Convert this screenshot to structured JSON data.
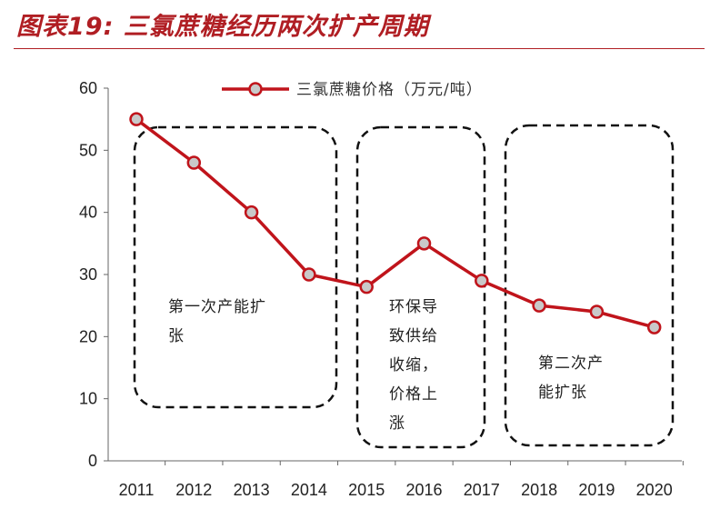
{
  "header": {
    "title": "图表19: 三氯蔗糖经历两次扩产周期"
  },
  "chart_data": {
    "type": "line",
    "title": "",
    "xlabel": "",
    "ylabel": "",
    "categories": [
      "2011",
      "2012",
      "2013",
      "2014",
      "2015",
      "2016",
      "2017",
      "2018",
      "2019",
      "2020"
    ],
    "series": [
      {
        "name": "三氯蔗糖价格（万元/吨）",
        "values": [
          55,
          48,
          40,
          30,
          28,
          35,
          29,
          25,
          24,
          21.5
        ],
        "color": "#c0141b"
      }
    ],
    "ylim": [
      0,
      60
    ],
    "yticks": [
      "0",
      "10",
      "20",
      "30",
      "40",
      "50",
      "60"
    ],
    "grid": false,
    "legend_position": "top",
    "annotations": [
      {
        "lines": [
          "第一次产能扩",
          "张"
        ],
        "years": [
          "2011",
          "2014"
        ]
      },
      {
        "lines": [
          "环保导",
          "致供给",
          "收缩，",
          "价格上",
          "涨"
        ],
        "years": [
          "2015",
          "2017"
        ]
      },
      {
        "lines": [
          "第二次产",
          "能扩张"
        ],
        "years": [
          "2018",
          "2020"
        ]
      }
    ]
  }
}
